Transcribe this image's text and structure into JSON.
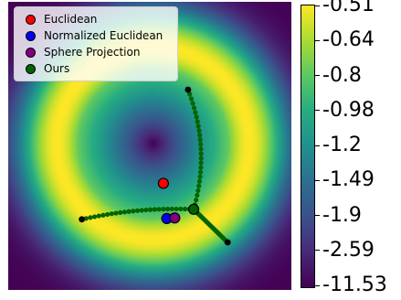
{
  "chart_data": {
    "type": "heatmap",
    "background": {
      "description_of_field": "radial",
      "colormap": "viridis",
      "colorbar_ticks": [
        "-0.51",
        "-0.64",
        "-0.8",
        "-0.98",
        "-1.2",
        "-1.49",
        "-1.9",
        "-2.59",
        "-11.53"
      ]
    },
    "legend": {
      "placement": "upper-left",
      "entries": [
        {
          "label": "Euclidean",
          "color": "#ff0000"
        },
        {
          "label": "Normalized Euclidean",
          "color": "#0000ff"
        },
        {
          "label": "Sphere Projection",
          "color": "#800080"
        },
        {
          "label": "Ours",
          "color": "#006400"
        }
      ]
    },
    "series": [
      {
        "name": "Ours",
        "kind": "trajectories",
        "color": "#006400",
        "paths": [
          {
            "from": [
              0.635,
              0.305
            ],
            "to": [
              0.655,
              0.72
            ]
          },
          {
            "from": [
              0.26,
              0.755
            ],
            "to": [
              0.655,
              0.72
            ]
          },
          {
            "from": [
              0.775,
              0.835
            ],
            "to": [
              0.655,
              0.72
            ]
          }
        ],
        "endpoint_color": "#000000"
      }
    ],
    "points": [
      {
        "name": "Euclidean",
        "x": 0.548,
        "y": 0.63,
        "color": "#ff0000"
      },
      {
        "name": "Normalized Euclidean",
        "x": 0.56,
        "y": 0.752,
        "color": "#0000ff"
      },
      {
        "name": "Sphere Projection",
        "x": 0.588,
        "y": 0.75,
        "color": "#800080"
      },
      {
        "name": "Ours",
        "x": 0.655,
        "y": 0.72,
        "color": "#006400"
      }
    ],
    "field_center": [
      0.51,
      0.49
    ],
    "grid": false
  }
}
